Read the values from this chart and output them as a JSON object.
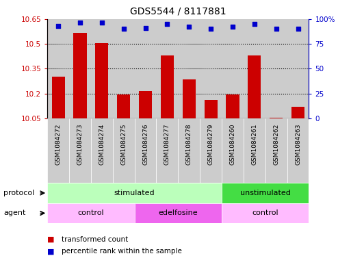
{
  "title": "GDS5544 / 8117881",
  "samples": [
    "GSM1084272",
    "GSM1084273",
    "GSM1084274",
    "GSM1084275",
    "GSM1084276",
    "GSM1084277",
    "GSM1084278",
    "GSM1084279",
    "GSM1084260",
    "GSM1084261",
    "GSM1084262",
    "GSM1084263"
  ],
  "bar_values": [
    10.3,
    10.565,
    10.505,
    10.195,
    10.215,
    10.43,
    10.285,
    10.16,
    10.195,
    10.43,
    10.055,
    10.12
  ],
  "dot_values": [
    93,
    96,
    96,
    90,
    91,
    95,
    92,
    90,
    92,
    95,
    90,
    90
  ],
  "ylim_left": [
    10.05,
    10.65
  ],
  "ylim_right": [
    0,
    100
  ],
  "yticks_left": [
    10.05,
    10.2,
    10.35,
    10.5,
    10.65
  ],
  "yticks_right": [
    0,
    25,
    50,
    75,
    100
  ],
  "ytick_labels_left": [
    "10.05",
    "10.2",
    "10.35",
    "10.5",
    "10.65"
  ],
  "ytick_labels_right": [
    "0",
    "25",
    "50",
    "75",
    "100%"
  ],
  "bar_color": "#cc0000",
  "dot_color": "#0000cc",
  "bar_bottom": 10.05,
  "hgrid_values": [
    10.2,
    10.35,
    10.5
  ],
  "protocol_groups": [
    {
      "label": "stimulated",
      "start": 0,
      "end": 8,
      "color": "#bbffbb"
    },
    {
      "label": "unstimulated",
      "start": 8,
      "end": 12,
      "color": "#44dd44"
    }
  ],
  "agent_groups": [
    {
      "label": "control",
      "start": 0,
      "end": 4,
      "color": "#ffbbff"
    },
    {
      "label": "edelfosine",
      "start": 4,
      "end": 8,
      "color": "#ee66ee"
    },
    {
      "label": "control",
      "start": 8,
      "end": 12,
      "color": "#ffbbff"
    }
  ],
  "legend_items": [
    {
      "label": "transformed count",
      "color": "#cc0000"
    },
    {
      "label": "percentile rank within the sample",
      "color": "#0000cc"
    }
  ],
  "xlabel_protocol": "protocol",
  "xlabel_agent": "agent",
  "background_color": "#ffffff",
  "tick_color_left": "#cc0000",
  "tick_color_right": "#0000cc",
  "column_bg": "#cccccc"
}
